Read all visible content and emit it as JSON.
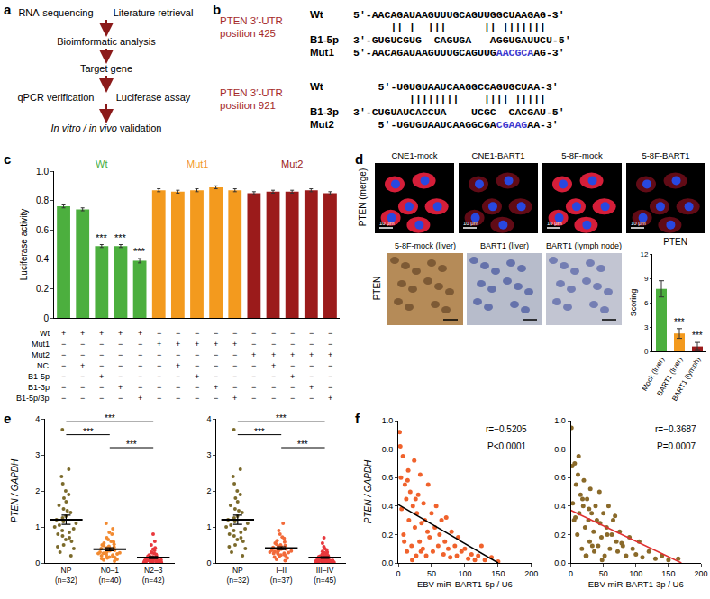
{
  "panel_labels": [
    "a",
    "b",
    "c",
    "d",
    "e",
    "f"
  ],
  "flowchart": {
    "rows": [
      [
        {
          "text": "RNA-sequencing"
        },
        {
          "text": "Literature retrieval"
        }
      ],
      [
        {
          "text": "Bioimformatic analysis"
        }
      ],
      [
        {
          "text": "Target gene"
        }
      ],
      [
        {
          "text": "qPCR verification"
        },
        {
          "text": "Luciferase assay"
        }
      ],
      [
        {
          "italic": "In vitro / in vivo",
          "text": "validation"
        }
      ]
    ]
  },
  "alignment": [
    {
      "title": [
        "PTEN 3′-UTR",
        "position 425"
      ],
      "rows": [
        {
          "label": "Wt",
          "text": "5′-AACAGAUAAGUUUGCAGUUGGCUAAGAG-3′"
        },
        {
          "text": "      || |  |||      || ||||||| "
        },
        {
          "label": "B1-5p",
          "text": "3′-GUGUCGUG  CAGUGA   AGGUGAUUCU-5′"
        },
        {
          "label": "Mut1",
          "segments": [
            "5′-AACAGAUAAGUUUGCAGUUG",
            "AACGCA",
            "AG-3′"
          ],
          "mutated": 1
        }
      ]
    },
    {
      "title": [
        "PTEN 3′-UTR",
        "position 921"
      ],
      "rows": [
        {
          "label": "Wt",
          "text": "    5′-UGUGUAAUCAAGGCCAGUGCUAA-3′"
        },
        {
          "text": "         ||||||||    |||| ||||| "
        },
        {
          "label": "B1-3p",
          "text": "3′-CUGUAUCACCUA    UCGC  CACGAU-5′"
        },
        {
          "label": "Mut2",
          "segments": [
            "    5′-UGUGUAAUCAAGGCGA",
            "CGAAG",
            "AA-3′"
          ],
          "mutated": 1
        }
      ]
    }
  ],
  "images": {
    "top": {
      "label": "PTEN (merge)",
      "panels": [
        "CNE1-mock",
        "CNE1-BART1",
        "5-8F-mock",
        "5-8F-BART1"
      ],
      "scale_bar": "10 μm"
    },
    "bottom": {
      "label": "PTEN",
      "panels": [
        "5-8F-mock (liver)",
        "BART1 (liver)",
        "BART1 (lymph node)"
      ]
    }
  },
  "chart_data": [
    {
      "type": "bar",
      "categories": [
        null,
        null,
        null,
        null,
        null,
        null,
        null,
        null,
        null,
        null,
        null,
        null,
        null,
        null,
        null
      ],
      "values": [
        0.76,
        0.74,
        0.49,
        0.49,
        0.39,
        0.87,
        0.86,
        0.87,
        0.89,
        0.87,
        0.85,
        0.86,
        0.86,
        0.87,
        0.85
      ],
      "errors": [
        0.01,
        0.01,
        0.01,
        0.01,
        0.015,
        0.01,
        0.01,
        0.01,
        0.01,
        0.01,
        0.01,
        0.01,
        0.01,
        0.01,
        0.01
      ],
      "colors": [
        "#4caf3e",
        "#4caf3e",
        "#4caf3e",
        "#4caf3e",
        "#4caf3e",
        "#f39a1e",
        "#f39a1e",
        "#f39a1e",
        "#f39a1e",
        "#f39a1e",
        "#9b1b1b",
        "#9b1b1b",
        "#9b1b1b",
        "#9b1b1b",
        "#9b1b1b"
      ],
      "significance": [
        null,
        null,
        "***",
        "***",
        "***",
        null,
        null,
        null,
        null,
        null,
        null,
        null,
        null,
        null,
        null
      ],
      "ylabel": "Luciferase activity",
      "ylim": [
        0,
        1
      ],
      "yticks": [
        0,
        0.2,
        0.4,
        0.6,
        0.8,
        {
          "value": 1,
          "label": "1.0"
        }
      ],
      "groups": [
        {
          "name": "Wt",
          "color": "#4caf3e",
          "from": 0,
          "to": 4
        },
        {
          "name": "Mut1",
          "color": "#f39a1e",
          "from": 5,
          "to": 9
        },
        {
          "name": "Mut2",
          "color": "#9b1b1b",
          "from": 10,
          "to": 14
        }
      ],
      "design": {
        "rows": [
          "Wt",
          "Mut1",
          "Mut2",
          "NC",
          "B1-5p",
          "B1-3p",
          "B1-5p/3p"
        ],
        "cells": [
          [
            "+",
            "+",
            "+",
            "+",
            "+",
            "−",
            "−",
            "−",
            "−",
            "−",
            "−",
            "−",
            "−",
            "−",
            "−"
          ],
          [
            "−",
            "−",
            "−",
            "−",
            "−",
            "+",
            "+",
            "+",
            "+",
            "+",
            "−",
            "−",
            "−",
            "−",
            "−"
          ],
          [
            "−",
            "−",
            "−",
            "−",
            "−",
            "−",
            "−",
            "−",
            "−",
            "−",
            "+",
            "+",
            "+",
            "+",
            "+"
          ],
          [
            "−",
            "+",
            "−",
            "−",
            "−",
            "−",
            "+",
            "−",
            "−",
            "−",
            "−",
            "+",
            "−",
            "−",
            "−"
          ],
          [
            "−",
            "−",
            "+",
            "−",
            "−",
            "−",
            "−",
            "+",
            "−",
            "−",
            "−",
            "−",
            "+",
            "−",
            "−"
          ],
          [
            "−",
            "−",
            "−",
            "+",
            "−",
            "−",
            "−",
            "−",
            "+",
            "−",
            "−",
            "−",
            "−",
            "+",
            "−"
          ],
          [
            "−",
            "−",
            "−",
            "−",
            "+",
            "−",
            "−",
            "−",
            "−",
            "+",
            "−",
            "−",
            "−",
            "−",
            "+"
          ]
        ]
      }
    },
    {
      "type": "bar",
      "title": "PTEN",
      "categories": [
        "Mock (liver)",
        "BART1 (liver)",
        "BART1 (lymph)"
      ],
      "values": [
        7.7,
        2.2,
        0.6
      ],
      "errors": [
        1.0,
        0.6,
        0.5
      ],
      "colors": [
        "#4caf3e",
        "#f39a1e",
        "#9b1b1b"
      ],
      "significance": [
        null,
        "***",
        "***"
      ],
      "ylabel": "Scoring",
      "ylim": [
        0,
        12
      ],
      "yticks": [
        0,
        3,
        6,
        9,
        12
      ]
    },
    {
      "type": "dot",
      "ylabel": "PTEN / GAPDH",
      "categories": [
        "NP (n=32)",
        "N0–1 (n=40)",
        "N2–3 (n=42)"
      ],
      "values": [
        [
          3.7,
          2.6,
          2.4,
          2.2,
          2.0,
          1.9,
          1.8,
          1.7,
          1.6,
          1.5,
          1.45,
          1.4,
          1.3,
          1.25,
          1.2,
          1.15,
          1.1,
          1.05,
          1.0,
          0.95,
          0.9,
          0.85,
          0.8,
          0.75,
          0.7,
          0.65,
          0.6,
          0.5,
          0.45,
          0.4,
          0.3,
          0.2
        ],
        [
          1.1,
          0.95,
          0.85,
          0.8,
          0.7,
          0.65,
          0.6,
          0.58,
          0.55,
          0.52,
          0.5,
          0.48,
          0.46,
          0.44,
          0.42,
          0.4,
          0.4,
          0.38,
          0.36,
          0.35,
          0.34,
          0.32,
          0.3,
          0.3,
          0.28,
          0.27,
          0.26,
          0.25,
          0.24,
          0.22,
          0.2,
          0.2,
          0.18,
          0.16,
          0.15,
          0.14,
          0.12,
          0.1,
          0.08,
          0.05
        ],
        [
          0.8,
          0.6,
          0.5,
          0.42,
          0.38,
          0.35,
          0.3,
          0.28,
          0.26,
          0.24,
          0.22,
          0.2,
          0.19,
          0.18,
          0.17,
          0.16,
          0.15,
          0.14,
          0.13,
          0.12,
          0.12,
          0.11,
          0.1,
          0.1,
          0.09,
          0.08,
          0.08,
          0.07,
          0.07,
          0.06,
          0.06,
          0.05,
          0.05,
          0.04,
          0.04,
          0.03,
          0.03,
          0.03,
          0.02,
          0.02,
          0.01,
          0.01
        ]
      ],
      "mean": [
        1.2,
        0.38,
        0.15
      ],
      "sem": [
        0.13,
        0.04,
        0.03
      ],
      "colors": [
        "#7b6a2b",
        "#f28a30",
        "#e8383d"
      ],
      "ylim": [
        0,
        4
      ],
      "yticks": [
        0,
        1,
        2,
        3,
        4
      ],
      "comparisons": [
        {
          "between": [
            1,
            2
          ],
          "label": "***"
        },
        {
          "between": [
            0,
            1
          ],
          "label": "***"
        },
        {
          "between": [
            0,
            2
          ],
          "label": "***"
        }
      ]
    },
    {
      "type": "dot",
      "categories": [
        "NP (n=32)",
        "I–II (n=37)",
        "III–IV (n=45)"
      ],
      "values": [
        [
          3.7,
          2.6,
          2.4,
          2.2,
          2.0,
          1.9,
          1.8,
          1.7,
          1.6,
          1.5,
          1.45,
          1.4,
          1.3,
          1.25,
          1.2,
          1.15,
          1.1,
          1.05,
          1.0,
          0.95,
          0.9,
          0.85,
          0.8,
          0.75,
          0.7,
          0.65,
          0.6,
          0.5,
          0.45,
          0.4,
          0.3,
          0.2
        ],
        [
          1.1,
          0.9,
          0.8,
          0.72,
          0.68,
          0.62,
          0.58,
          0.55,
          0.52,
          0.5,
          0.48,
          0.46,
          0.45,
          0.43,
          0.42,
          0.4,
          0.39,
          0.38,
          0.36,
          0.35,
          0.34,
          0.33,
          0.32,
          0.3,
          0.29,
          0.28,
          0.27,
          0.26,
          0.25,
          0.23,
          0.22,
          0.2,
          0.18,
          0.16,
          0.14,
          0.1,
          0.06
        ],
        [
          0.7,
          0.55,
          0.45,
          0.4,
          0.36,
          0.32,
          0.3,
          0.28,
          0.26,
          0.24,
          0.22,
          0.21,
          0.2,
          0.19,
          0.18,
          0.17,
          0.16,
          0.15,
          0.14,
          0.13,
          0.13,
          0.12,
          0.11,
          0.1,
          0.1,
          0.09,
          0.09,
          0.08,
          0.08,
          0.07,
          0.07,
          0.06,
          0.06,
          0.05,
          0.05,
          0.04,
          0.04,
          0.03,
          0.03,
          0.03,
          0.02,
          0.02,
          0.02,
          0.01,
          0.01
        ]
      ],
      "mean": [
        1.2,
        0.41,
        0.15
      ],
      "sem": [
        0.13,
        0.04,
        0.02
      ],
      "colors": [
        "#7b6a2b",
        "#f26a3a",
        "#e8383d"
      ],
      "ylim": [
        0,
        4
      ],
      "yticks": [
        0,
        1,
        2,
        3,
        4
      ],
      "comparisons": [
        {
          "between": [
            1,
            2
          ],
          "label": "***"
        },
        {
          "between": [
            0,
            1
          ],
          "label": "***"
        },
        {
          "between": [
            0,
            2
          ],
          "label": "***"
        }
      ]
    },
    {
      "type": "scatter",
      "xlabel": "EBV-miR-BART1-5p / U6",
      "ylabel": "PTEN / GAPDH",
      "x": [
        2,
        4,
        5,
        7,
        8,
        10,
        12,
        13,
        15,
        16,
        18,
        20,
        22,
        24,
        25,
        27,
        28,
        30,
        32,
        33,
        35,
        37,
        38,
        40,
        42,
        44,
        45,
        47,
        50,
        52,
        55,
        57,
        60,
        62,
        65,
        68,
        70,
        72,
        75,
        78,
        80,
        85,
        88,
        90,
        95,
        100,
        105,
        110,
        115,
        120,
        125,
        130,
        140,
        150,
        3,
        9,
        14,
        21,
        26,
        34
      ],
      "values": [
        0.92,
        0.6,
        0.38,
        0.75,
        0.2,
        0.55,
        0.45,
        0.08,
        0.65,
        0.3,
        0.5,
        0.12,
        0.4,
        0.72,
        0.25,
        0.05,
        0.35,
        0.48,
        0.15,
        0.62,
        0.28,
        0.1,
        0.42,
        0.3,
        0.05,
        0.22,
        0.55,
        0.18,
        0.35,
        0.08,
        0.25,
        0.4,
        0.12,
        0.2,
        0.3,
        0.06,
        0.15,
        0.32,
        0.1,
        0.04,
        0.22,
        0.12,
        0.05,
        0.18,
        0.08,
        0.1,
        0.03,
        0.06,
        0.02,
        0.05,
        0.12,
        0.02,
        0.04,
        0.01,
        0.82,
        0.15,
        0.58,
        0.02,
        0.45,
        0.08
      ],
      "color": "#f0622c",
      "fit": {
        "x": [
          0,
          150
        ],
        "y": [
          0.41,
          0
        ],
        "color": "#000000"
      },
      "annotations": [
        "r=−0.5205",
        "P<0.0001"
      ],
      "xlim": [
        0,
        200
      ],
      "xticks": [
        0,
        50,
        100,
        150,
        200
      ],
      "ylim": [
        0,
        1
      ],
      "yticks": [
        {
          "value": 0,
          "label": "0.0"
        },
        0.2,
        0.4,
        0.6,
        0.8,
        {
          "value": 1,
          "label": "1.0"
        }
      ]
    },
    {
      "type": "scatter",
      "xlabel": "EBV-miR-BART1-3p / U6",
      "x": [
        1,
        3,
        5,
        6,
        8,
        10,
        11,
        13,
        15,
        17,
        19,
        20,
        22,
        23,
        25,
        27,
        29,
        30,
        32,
        35,
        36,
        38,
        40,
        42,
        45,
        47,
        50,
        52,
        55,
        58,
        60,
        63,
        65,
        70,
        72,
        75,
        80,
        85,
        90,
        95,
        100,
        105,
        110,
        120,
        130,
        140,
        150,
        165,
        2,
        7,
        12,
        18,
        24,
        28,
        33,
        44,
        48,
        56,
        68,
        78
      ],
      "values": [
        0.95,
        0.42,
        0.3,
        0.7,
        0.55,
        0.2,
        0.62,
        0.35,
        0.48,
        0.1,
        0.4,
        0.58,
        0.25,
        0.05,
        0.45,
        0.3,
        0.15,
        0.52,
        0.35,
        0.22,
        0.08,
        0.4,
        0.3,
        0.12,
        0.28,
        0.18,
        0.35,
        0.05,
        0.25,
        0.4,
        0.1,
        0.2,
        0.3,
        0.15,
        0.08,
        0.22,
        0.12,
        0.05,
        0.18,
        0.1,
        0.06,
        0.15,
        0.04,
        0.08,
        0.03,
        0.05,
        0.02,
        0.03,
        0.68,
        0.32,
        0.75,
        0.45,
        0.05,
        0.38,
        0.12,
        0.5,
        0.02,
        0.2,
        0.33,
        0.14
      ],
      "color": "#8a6a2a",
      "fit": {
        "x": [
          0,
          170
        ],
        "y": [
          0.37,
          0
        ],
        "color": "#e03030"
      },
      "annotations": [
        "r=−0.3687",
        "P=0.0007"
      ],
      "xlim": [
        0,
        200
      ],
      "xticks": [
        0,
        50,
        100,
        150,
        200
      ],
      "ylim": [
        0,
        1
      ],
      "yticks": [
        {
          "value": 0,
          "label": "0.0"
        },
        0.2,
        0.4,
        0.6,
        0.8,
        {
          "value": 1,
          "label": "1.0"
        }
      ]
    }
  ]
}
